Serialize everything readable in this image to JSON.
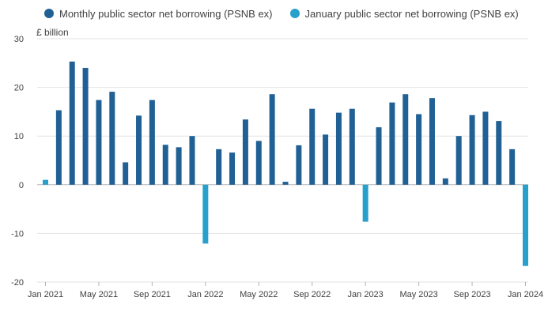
{
  "chart_data": {
    "type": "bar",
    "title": "",
    "xlabel": "",
    "ylabel": "£ billion",
    "ylim": [
      -20,
      30
    ],
    "yticks": [
      30,
      20,
      10,
      0,
      -10,
      -20
    ],
    "grid": true,
    "legend_placement": "top-left",
    "categories": [
      "Jan 2021",
      "Feb 2021",
      "Mar 2021",
      "Apr 2021",
      "May 2021",
      "Jun 2021",
      "Jul 2021",
      "Aug 2021",
      "Sep 2021",
      "Oct 2021",
      "Nov 2021",
      "Dec 2021",
      "Jan 2022",
      "Feb 2022",
      "Mar 2022",
      "Apr 2022",
      "May 2022",
      "Jun 2022",
      "Jul 2022",
      "Aug 2022",
      "Sep 2022",
      "Oct 2022",
      "Nov 2022",
      "Dec 2022",
      "Jan 2023",
      "Feb 2023",
      "Mar 2023",
      "Apr 2023",
      "May 2023",
      "Jun 2023",
      "Jul 2023",
      "Aug 2023",
      "Sep 2023",
      "Oct 2023",
      "Nov 2023",
      "Dec 2023",
      "Jan 2024"
    ],
    "x_tick_labels": [
      {
        "index": 0,
        "label": "Jan 2021"
      },
      {
        "index": 4,
        "label": "May 2021"
      },
      {
        "index": 8,
        "label": "Sep 2021"
      },
      {
        "index": 12,
        "label": "Jan 2022"
      },
      {
        "index": 16,
        "label": "May 2022"
      },
      {
        "index": 20,
        "label": "Sep 2022"
      },
      {
        "index": 24,
        "label": "Jan 2023"
      },
      {
        "index": 28,
        "label": "May 2023"
      },
      {
        "index": 32,
        "label": "Sep 2023"
      },
      {
        "index": 36,
        "label": "Jan 2024"
      }
    ],
    "series": [
      {
        "name": "Monthly public sector net borrowing (PSNB ex)",
        "color": "#206095",
        "values": [
          null,
          15.3,
          25.3,
          24.0,
          17.4,
          19.1,
          4.6,
          14.2,
          17.4,
          8.2,
          7.7,
          10.0,
          null,
          7.3,
          6.6,
          13.4,
          9.0,
          18.6,
          0.6,
          8.1,
          15.6,
          10.3,
          14.8,
          15.6,
          null,
          11.8,
          16.9,
          18.6,
          14.5,
          17.8,
          1.3,
          10.0,
          14.3,
          15.0,
          13.1,
          7.3,
          null
        ]
      },
      {
        "name": "January public sector net borrowing (PSNB ex)",
        "color": "#27a0cc",
        "values": [
          1.0,
          null,
          null,
          null,
          null,
          null,
          null,
          null,
          null,
          null,
          null,
          null,
          -12.1,
          null,
          null,
          null,
          null,
          null,
          null,
          null,
          null,
          null,
          null,
          null,
          -7.6,
          null,
          null,
          null,
          null,
          null,
          null,
          null,
          null,
          null,
          null,
          null,
          -16.7
        ]
      }
    ]
  }
}
